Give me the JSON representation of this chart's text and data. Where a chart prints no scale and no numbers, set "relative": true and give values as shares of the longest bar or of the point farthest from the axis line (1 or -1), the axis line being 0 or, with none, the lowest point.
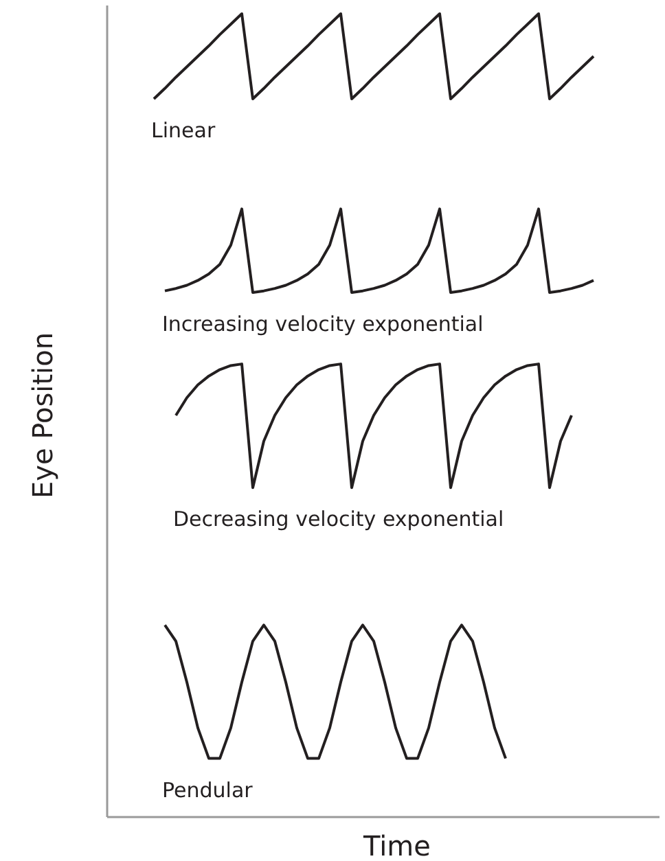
{
  "chart_data": {
    "type": "line",
    "relative": true,
    "xlabel": "Time",
    "ylabel": "Eye Position",
    "marker": "none",
    "line_style": "solid",
    "categories": [
      null,
      null,
      null,
      null,
      null,
      null,
      null,
      null,
      null,
      null,
      null,
      null,
      null,
      null,
      null,
      null,
      null,
      null,
      null,
      null,
      null,
      null,
      null,
      null,
      null,
      null,
      null,
      null,
      null,
      null,
      null,
      null,
      null,
      null,
      null,
      null,
      null,
      null,
      null,
      null,
      null
    ],
    "series": [
      {
        "name": "Linear",
        "color": "#231f20",
        "values": [
          0.894,
          0.907,
          0.921,
          0.934,
          0.947,
          0.96,
          0.974,
          0.987,
          1,
          0.894,
          0.907,
          0.921,
          0.934,
          0.947,
          0.96,
          0.974,
          0.987,
          1,
          0.894,
          0.907,
          0.921,
          0.934,
          0.947,
          0.96,
          0.974,
          0.987,
          1,
          0.894,
          0.907,
          0.921,
          0.934,
          0.947,
          0.96,
          0.974,
          0.987,
          1,
          0.894,
          0.907,
          0.921,
          0.934,
          0.947
        ]
      },
      {
        "name": "Increasing velocity exponential",
        "color": "#231f20",
        "values": [
          null,
          0.655,
          0.658,
          0.662,
          0.668,
          0.676,
          0.688,
          0.712,
          0.757,
          0.653,
          0.655,
          0.658,
          0.662,
          0.668,
          0.676,
          0.688,
          0.712,
          0.757,
          0.653,
          0.655,
          0.658,
          0.662,
          0.668,
          0.676,
          0.688,
          0.712,
          0.757,
          0.653,
          0.655,
          0.658,
          0.662,
          0.668,
          0.676,
          0.688,
          0.712,
          0.757,
          0.653,
          0.655,
          0.658,
          0.662,
          0.668
        ]
      },
      {
        "name": "Decreasing velocity exponential",
        "color": "#231f20",
        "values": [
          null,
          null,
          0.5,
          0.522,
          0.538,
          0.549,
          0.557,
          0.562,
          0.564,
          0.41,
          0.468,
          0.5,
          0.522,
          0.538,
          0.549,
          0.557,
          0.562,
          0.564,
          0.41,
          0.468,
          0.5,
          0.522,
          0.538,
          0.549,
          0.557,
          0.562,
          0.564,
          0.41,
          0.468,
          0.5,
          0.522,
          0.538,
          0.549,
          0.557,
          0.562,
          0.564,
          0.41,
          0.468,
          0.5,
          null,
          null
        ]
      },
      {
        "name": "Pendular",
        "color": "#231f20",
        "values": [
          null,
          0.239,
          0.219,
          0.168,
          0.111,
          0.073,
          0.073,
          0.111,
          0.168,
          0.219,
          0.239,
          0.219,
          0.168,
          0.111,
          0.073,
          0.073,
          0.111,
          0.168,
          0.219,
          0.239,
          0.219,
          0.168,
          0.111,
          0.073,
          0.073,
          0.111,
          0.168,
          0.219,
          0.239,
          0.219,
          0.168,
          0.111,
          0.073,
          null,
          null,
          null,
          null,
          null,
          null,
          null,
          null
        ]
      }
    ]
  }
}
